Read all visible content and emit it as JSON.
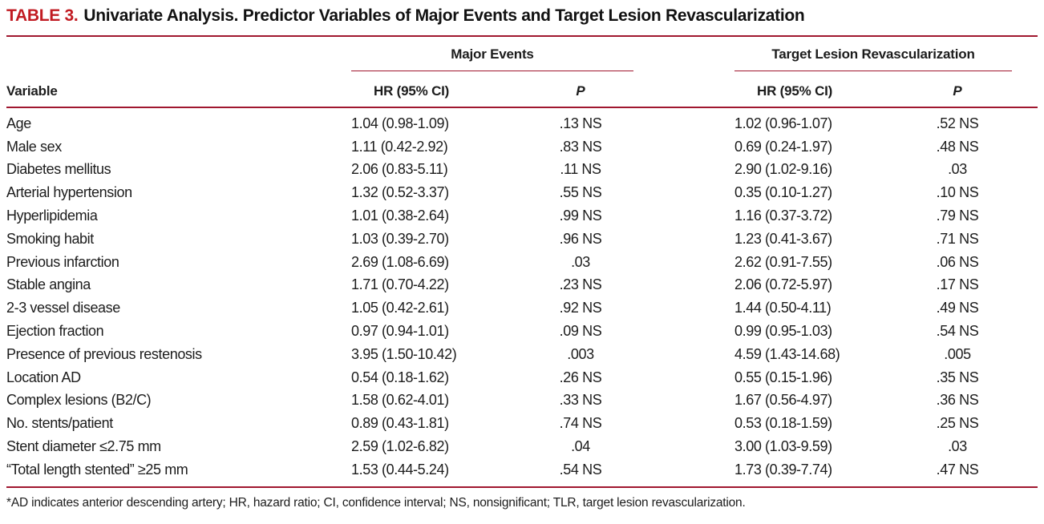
{
  "colors": {
    "title_red": "#c11b22",
    "rule_red": "#a0172f",
    "text": "#1c1c1c",
    "background": "#ffffff"
  },
  "title": {
    "label": "TABLE 3.",
    "text": "Univariate Analysis. Predictor Variables of Major Events and Target Lesion Revascularization"
  },
  "table": {
    "group_headers": {
      "major_events": "Major Events",
      "tlr": "Target Lesion Revascularization"
    },
    "column_headers": {
      "variable": "Variable",
      "me_hr": "HR (95% CI)",
      "me_p": "P",
      "tlr_hr": "HR (95% CI)",
      "tlr_p": "P"
    },
    "rows": [
      {
        "variable": "Age",
        "me_hr": "1.04 (0.98-1.09)",
        "me_p": ".13 NS",
        "tlr_hr": "1.02 (0.96-1.07)",
        "tlr_p": ".52 NS"
      },
      {
        "variable": "Male sex",
        "me_hr": "1.11 (0.42-2.92)",
        "me_p": ".83 NS",
        "tlr_hr": "0.69 (0.24-1.97)",
        "tlr_p": ".48 NS"
      },
      {
        "variable": "Diabetes mellitus",
        "me_hr": "2.06 (0.83-5.11)",
        "me_p": ".11 NS",
        "tlr_hr": "2.90 (1.02-9.16)",
        "tlr_p": ".03"
      },
      {
        "variable": "Arterial hypertension",
        "me_hr": "1.32 (0.52-3.37)",
        "me_p": ".55 NS",
        "tlr_hr": "0.35 (0.10-1.27)",
        "tlr_p": ".10 NS"
      },
      {
        "variable": "Hyperlipidemia",
        "me_hr": "1.01 (0.38-2.64)",
        "me_p": ".99 NS",
        "tlr_hr": "1.16 (0.37-3.72)",
        "tlr_p": ".79 NS"
      },
      {
        "variable": "Smoking habit",
        "me_hr": "1.03 (0.39-2.70)",
        "me_p": ".96 NS",
        "tlr_hr": "1.23 (0.41-3.67)",
        "tlr_p": ".71 NS"
      },
      {
        "variable": "Previous infarction",
        "me_hr": "2.69 (1.08-6.69)",
        "me_p": ".03",
        "tlr_hr": "2.62 (0.91-7.55)",
        "tlr_p": ".06 NS"
      },
      {
        "variable": "Stable angina",
        "me_hr": "1.71 (0.70-4.22)",
        "me_p": ".23 NS",
        "tlr_hr": "2.06 (0.72-5.97)",
        "tlr_p": ".17 NS"
      },
      {
        "variable": "2-3 vessel disease",
        "me_hr": "1.05 (0.42-2.61)",
        "me_p": ".92 NS",
        "tlr_hr": "1.44 (0.50-4.11)",
        "tlr_p": ".49 NS"
      },
      {
        "variable": "Ejection fraction",
        "me_hr": "0.97 (0.94-1.01)",
        "me_p": ".09 NS",
        "tlr_hr": "0.99 (0.95-1.03)",
        "tlr_p": ".54 NS"
      },
      {
        "variable": "Presence of previous restenosis",
        "me_hr": "3.95 (1.50-10.42)",
        "me_p": ".003",
        "tlr_hr": "4.59 (1.43-14.68)",
        "tlr_p": ".005"
      },
      {
        "variable": "Location AD",
        "me_hr": "0.54 (0.18-1.62)",
        "me_p": ".26 NS",
        "tlr_hr": "0.55 (0.15-1.96)",
        "tlr_p": ".35 NS"
      },
      {
        "variable": "Complex lesions (B2/C)",
        "me_hr": "1.58 (0.62-4.01)",
        "me_p": ".33 NS",
        "tlr_hr": "1.67 (0.56-4.97)",
        "tlr_p": ".36 NS"
      },
      {
        "variable": "No. stents/patient",
        "me_hr": "0.89 (0.43-1.81)",
        "me_p": ".74 NS",
        "tlr_hr": "0.53 (0.18-1.59)",
        "tlr_p": ".25 NS"
      },
      {
        "variable": "Stent diameter ≤2.75 mm",
        "me_hr": "2.59 (1.02-6.82)",
        "me_p": ".04",
        "tlr_hr": "3.00 (1.03-9.59)",
        "tlr_p": ".03"
      },
      {
        "variable": "“Total length stented” ≥25 mm",
        "me_hr": "1.53 (0.44-5.24)",
        "me_p": ".54 NS",
        "tlr_hr": "1.73 (0.39-7.74)",
        "tlr_p": ".47 NS"
      }
    ],
    "footnote": "*AD indicates anterior descending artery; HR, hazard ratio; CI, confidence interval; NS, nonsignificant; TLR, target lesion revascularization."
  }
}
